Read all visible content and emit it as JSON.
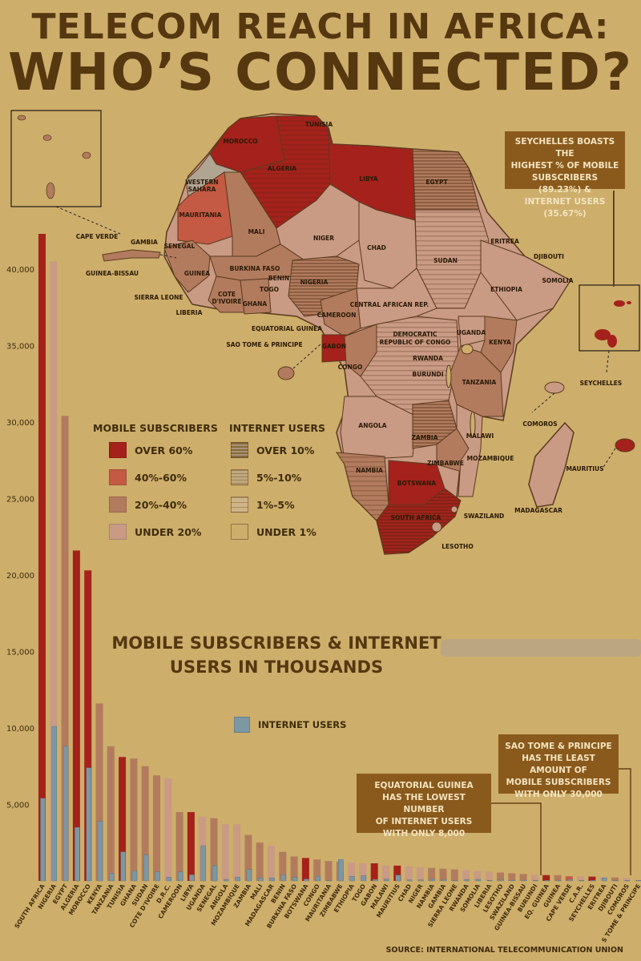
{
  "title_line1": "TELECOM REACH IN AFRICA:",
  "title_line2": "WHO’S CONNECTED?",
  "callouts": {
    "seychelles": [
      "SEYCHELLES BOASTS THE",
      "HIGHEST % OF MOBILE",
      "SUBSCRIBERS (89.23%) &",
      "INTERNET USERS (35.67%)"
    ],
    "equatorial_guinea": [
      "EQUATORIAL GUINEA",
      "HAS THE LOWEST NUMBER",
      "OF INTERNET USERS",
      "WITH ONLY 8,000"
    ],
    "sao_tome": [
      "SAO TOME & PRINCIPE",
      "HAS THE LEAST AMOUNT OF",
      "MOBILE SUBSCRIBERS",
      "WITH ONLY 30,000"
    ]
  },
  "subtitle": [
    "MOBILE SUBSCRIBERS & INTERNET",
    "USERS IN THOUSANDS"
  ],
  "legend": {
    "mobile_heading": "MOBILE SUBSCRIBERS",
    "internet_heading": "INTERNET USERS",
    "mobile_items": [
      {
        "label": "OVER 60%",
        "color": "#a4221b"
      },
      {
        "label": "40%-60%",
        "color": "#c45a44"
      },
      {
        "label": "20%-40%",
        "color": "#b27b5e"
      },
      {
        "label": "UNDER 20%",
        "color": "#c99a84"
      }
    ],
    "internet_items": [
      {
        "label": "OVER 10%",
        "pattern": "dense"
      },
      {
        "label": "5%-10%",
        "pattern": "medium"
      },
      {
        "label": "1%-5%",
        "pattern": "light"
      },
      {
        "label": "UNDER 1%",
        "pattern": "none"
      }
    ],
    "internet_users_series": "INTERNET USERS"
  },
  "map_labels": [
    "TUNISIA",
    "MOROCCO",
    "ALGERIA",
    "LIBYA",
    "EGYPT",
    "WESTERN SAHARA",
    "MAURITANIA",
    "MALI",
    "NIGER",
    "CHAD",
    "SUDAN",
    "ERITREA",
    "DJIBOUTI",
    "SOMOLIA",
    "ETHIOPIA",
    "SENEGAL",
    "GAMBIA",
    "GUINEA-BISSAU",
    "GUINEA",
    "SIERRA LEONE",
    "LIBERIA",
    "COTE D'IVOIRE",
    "BURKINA FASO",
    "GHANA",
    "TOGO",
    "BENIN",
    "NIGERIA",
    "CAMEROON",
    "CENTRAL AFRICAN REP.",
    "EQUATORIAL GUINEA",
    "SAO TOME & PRINCIPE",
    "GABON",
    "CONGO",
    "DEMOCRATIC REPUBLIC OF CONGO",
    "UGANDA",
    "KENYA",
    "RWANDA",
    "BURUNDI",
    "TANZANIA",
    "ANGOLA",
    "ZAMBIA",
    "MALAWI",
    "MOZAMBIQUE",
    "ZIMBABWE",
    "NAMBIA",
    "BOTSWANA",
    "SOUTH AFRICA",
    "SWAZILAND",
    "LESOTHO",
    "MADAGASCAR",
    "COMOROS",
    "MAURITIUS",
    "SEYCHELLES",
    "CAPE VERDE"
  ],
  "source": "SOURCE: INTERNATIONAL TELECOMMUNICATION UNION",
  "chart_data": {
    "type": "bar",
    "title": "MOBILE SUBSCRIBERS & INTERNET USERS IN THOUSANDS",
    "ylim": [
      0,
      43000
    ],
    "yticks": [
      "5,000",
      "10,000",
      "15,000",
      "20,000",
      "25,000",
      "30,000",
      "35,000",
      "40,000"
    ],
    "ytick_values": [
      5000,
      10000,
      15000,
      20000,
      25000,
      30000,
      35000,
      40000
    ],
    "categories": [
      "SOUTH AFRICA",
      "NIGERIA",
      "EGYPT",
      "ALGERIA",
      "MOROCCO",
      "KENYA",
      "TANZANIA",
      "TUNISIA",
      "GHANA",
      "SUDAN",
      "COTE D'IVOIRE",
      "D.R.C.",
      "CAMEROON",
      "LIBYA",
      "UGANDA",
      "SENEGAL",
      "ANGOLA",
      "MOZAMBIQUE",
      "ZAMBIA",
      "MALI",
      "MADAGASCAR",
      "BENIN",
      "BURKINA FASO",
      "BOTSWANA",
      "CONGO",
      "MAURITANIA",
      "ZIMBABWE",
      "ETHIOPIA",
      "TOGO",
      "GABON",
      "MALAWI",
      "MAURITIUS",
      "CHAD",
      "NIGER",
      "NAMBIA",
      "GAMBIA",
      "SIERRA LEONE",
      "RWANDA",
      "SOMOLIA",
      "LIBERIA",
      "LESOTHO",
      "SWAZILAND",
      "GUINEA-BISSAU",
      "BURUNDI",
      "EQ. GUINEA",
      "GUINEA",
      "CAPE VERDE",
      "C.A.R.",
      "SEYCHELLES",
      "ERITREA",
      "DJIBOUTI",
      "COMOROS",
      "S TOME & PRINCIPE"
    ],
    "series": [
      {
        "name": "MOBILE SUBSCRIBERS",
        "values": [
          42300,
          40500,
          30400,
          21600,
          20300,
          11600,
          8800,
          8100,
          8000,
          7500,
          6900,
          6700,
          4500,
          4500,
          4200,
          4100,
          3700,
          3700,
          3000,
          2500,
          2300,
          1900,
          1600,
          1500,
          1400,
          1300,
          1250,
          1200,
          1150,
          1150,
          1000,
          1000,
          950,
          900,
          850,
          800,
          750,
          700,
          650,
          600,
          550,
          500,
          450,
          400,
          380,
          380,
          300,
          300,
          280,
          250,
          230,
          200,
          30
        ],
        "category_levels": [
          "over60",
          "under20",
          "20to40",
          "over60",
          "over60",
          "20to40",
          "20to40",
          "over60",
          "20to40",
          "20to40",
          "20to40",
          "under20",
          "20to40",
          "over60",
          "under20",
          "20to40",
          "under20",
          "under20",
          "20to40",
          "20to40",
          "under20",
          "20to40",
          "20to40",
          "over60",
          "20to40",
          "20to40",
          "20to40",
          "under20",
          "under20",
          "over60",
          "under20",
          "over60",
          "under20",
          "under20",
          "20to40",
          "20to40",
          "20to40",
          "under20",
          "under20",
          "under20",
          "20to40",
          "20to40",
          "20to40",
          "under20",
          "over60",
          "20to40",
          "40to60",
          "under20",
          "over60",
          "under20",
          "20to40",
          "under20",
          "20to40"
        ]
      },
      {
        "name": "INTERNET USERS",
        "values": [
          5400,
          10100,
          8800,
          3500,
          7400,
          3900,
          500,
          1900,
          650,
          1700,
          600,
          240,
          600,
          400,
          2300,
          1000,
          100,
          250,
          750,
          200,
          200,
          400,
          250,
          120,
          300,
          40,
          1400,
          300,
          350,
          100,
          120,
          380,
          70,
          70,
          130,
          100,
          40,
          100,
          100,
          20,
          90,
          50,
          50,
          40,
          8,
          50,
          100,
          15,
          40,
          200,
          15,
          30,
          25
        ]
      }
    ]
  }
}
